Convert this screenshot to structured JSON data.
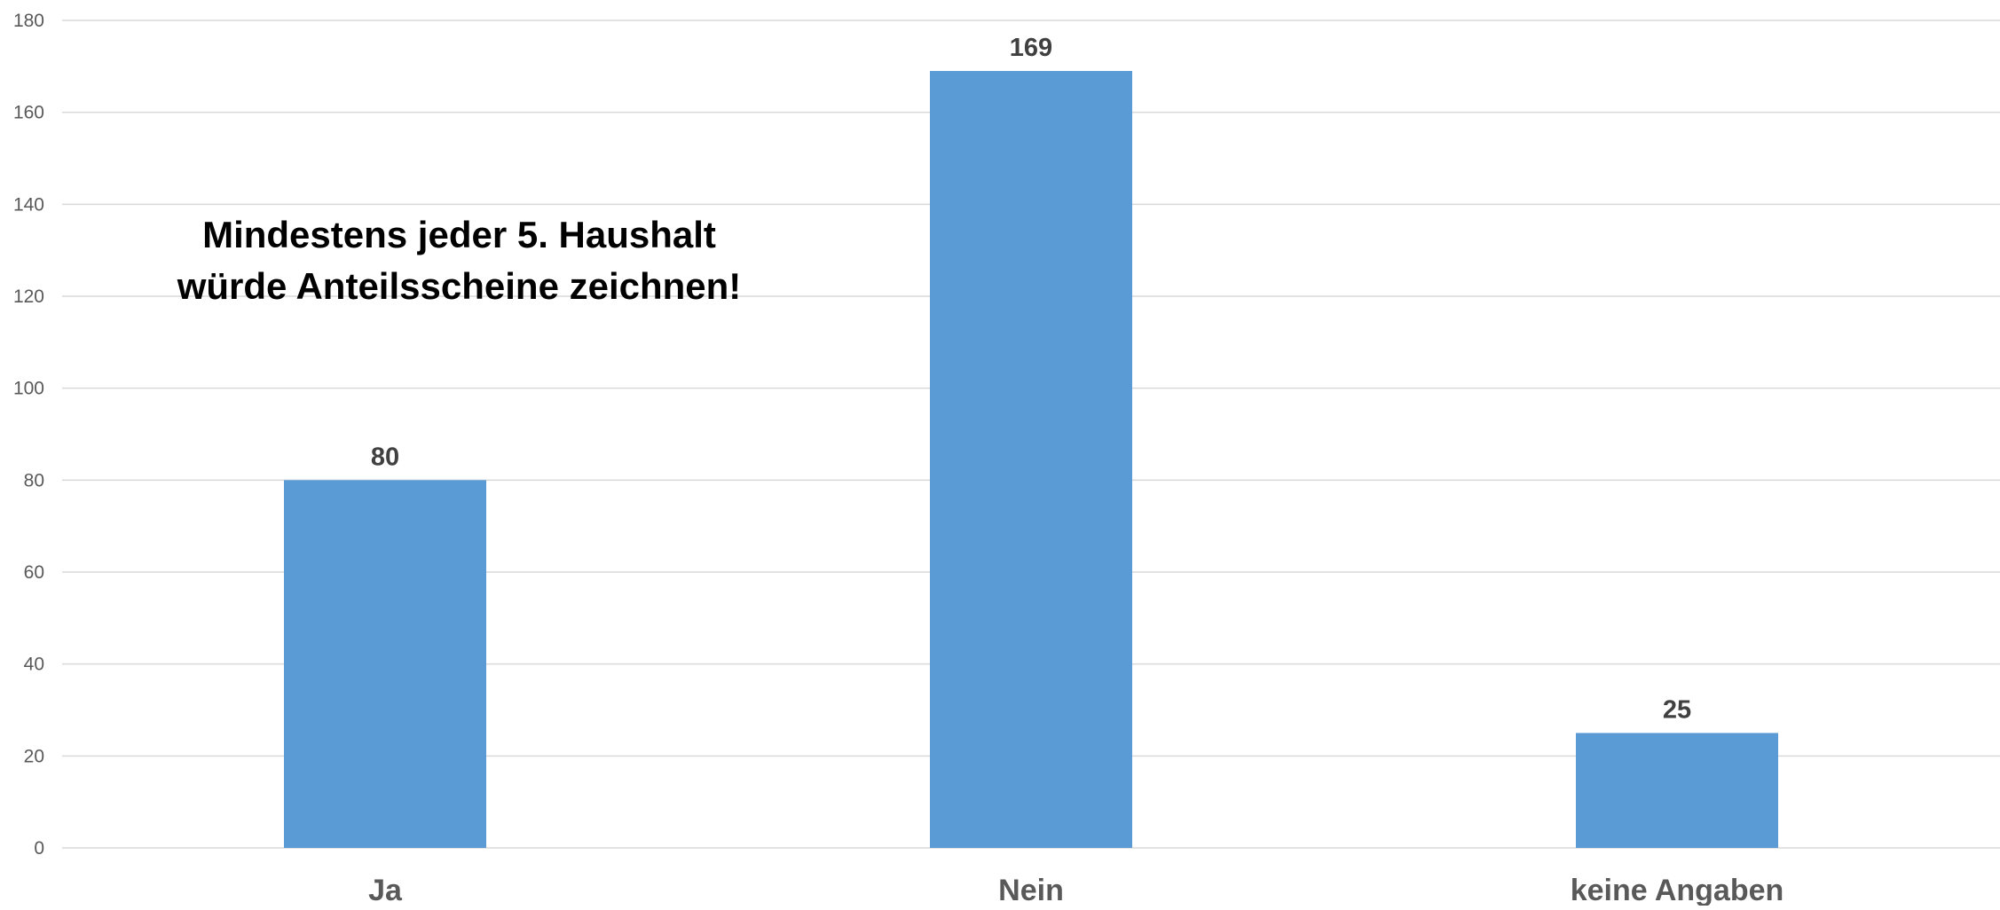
{
  "chart_data": {
    "type": "bar",
    "categories": [
      "Ja",
      "Nein",
      "keine Angaben"
    ],
    "values": [
      80,
      169,
      25
    ],
    "data_labels": [
      "80",
      "169",
      "25"
    ],
    "title": "",
    "xlabel": "",
    "ylabel": "",
    "ylim": [
      0,
      180
    ],
    "yticks": [
      0,
      20,
      40,
      60,
      80,
      100,
      120,
      140,
      160,
      180
    ],
    "grid": true,
    "legend": "none",
    "bar_color": "#5B9BD5",
    "annotation": "Mindestens jeder 5. Haushalt würde Anteilsscheine zeichnen!"
  }
}
